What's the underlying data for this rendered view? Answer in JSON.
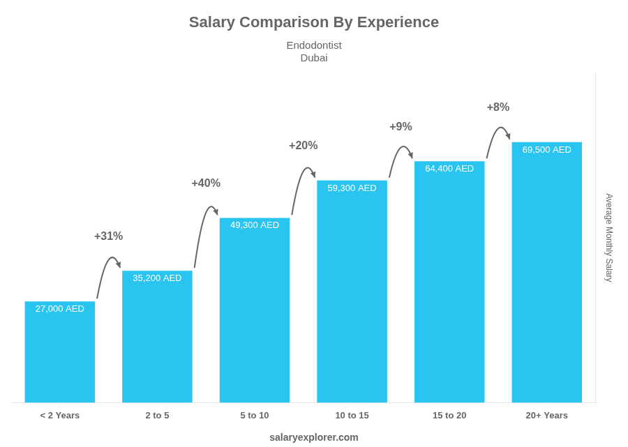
{
  "chart_data": {
    "type": "bar",
    "title": "Salary Comparison By Experience",
    "subtitle": [
      "Endodontist",
      "Dubai"
    ],
    "categories": [
      "< 2 Years",
      "2 to 5",
      "5 to 10",
      "10 to 15",
      "15 to 20",
      "20+ Years"
    ],
    "values": [
      27000,
      35200,
      49300,
      59300,
      64400,
      69500
    ],
    "value_labels": [
      "27,000 AED",
      "35,200 AED",
      "49,300 AED",
      "59,300 AED",
      "64,400 AED",
      "69,500 AED"
    ],
    "data_labels": true,
    "color": "#29C5F0",
    "ylabel": "Average Monthly Salary",
    "annotations": [
      "+31%",
      "+40%",
      "+20%",
      "+9%",
      "+8%"
    ],
    "footer": "salaryexplorer.com",
    "ylim": [
      0,
      88000
    ],
    "grid": false,
    "tick_labels": "x"
  }
}
